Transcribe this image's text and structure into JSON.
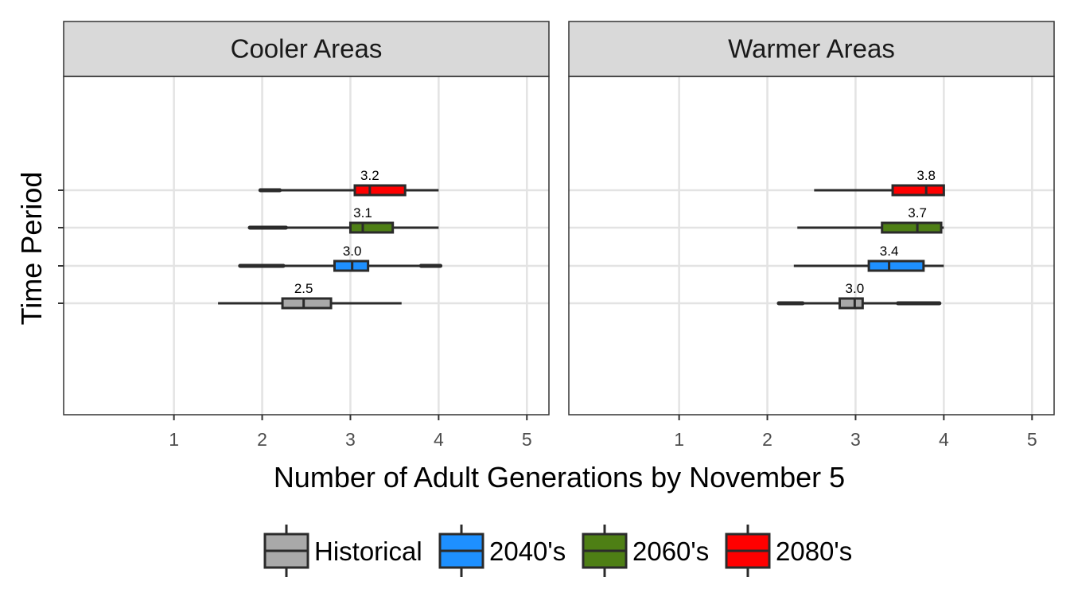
{
  "chart_data": {
    "type": "boxplot",
    "xlabel": "Number of Adult Generations by November 5",
    "ylabel": "Time Period",
    "xlim": [
      -0.25,
      5.25
    ],
    "xticks": [
      1,
      2,
      3,
      4,
      5
    ],
    "grid": true,
    "legend_position": "bottom",
    "series": [
      {
        "name": "Historical",
        "color": "#A9A9A9"
      },
      {
        "name": "2040's",
        "color": "#1E90FF"
      },
      {
        "name": "2060's",
        "color": "#4E7F15"
      },
      {
        "name": "2080's",
        "color": "#FF0000"
      }
    ],
    "panels": [
      {
        "title": "Cooler Areas",
        "boxes": [
          {
            "series": "Historical",
            "whisker_low": 1.5,
            "q1": 2.23,
            "median": 2.47,
            "q3": 2.78,
            "whisker_high": 3.58,
            "median_label": "2.5",
            "outlier_ranges": []
          },
          {
            "series": "2040's",
            "whisker_low": 2.24,
            "q1": 2.82,
            "median": 3.02,
            "q3": 3.2,
            "whisker_high": 3.8,
            "median_label": "3.0",
            "outlier_ranges": [
              [
                1.75,
                2.24
              ],
              [
                3.8,
                4.02
              ]
            ]
          },
          {
            "series": "2060's",
            "whisker_low": 2.27,
            "q1": 3.0,
            "median": 3.14,
            "q3": 3.48,
            "whisker_high": 4.0,
            "median_label": "3.1",
            "outlier_ranges": [
              [
                1.86,
                2.27
              ]
            ]
          },
          {
            "series": "2080's",
            "whisker_low": 2.2,
            "q1": 3.05,
            "median": 3.22,
            "q3": 3.62,
            "whisker_high": 4.0,
            "median_label": "3.2",
            "outlier_ranges": [
              [
                1.98,
                2.2
              ]
            ]
          }
        ]
      },
      {
        "title": "Warmer Areas",
        "boxes": [
          {
            "series": "Historical",
            "whisker_low": 2.4,
            "q1": 2.82,
            "median": 2.99,
            "q3": 3.08,
            "whisker_high": 3.48,
            "median_label": "3.0",
            "outlier_ranges": [
              [
                2.13,
                2.4
              ],
              [
                3.48,
                3.95
              ]
            ]
          },
          {
            "series": "2040's",
            "whisker_low": 2.3,
            "q1": 3.15,
            "median": 3.38,
            "q3": 3.77,
            "whisker_high": 4.0,
            "median_label": "3.4",
            "outlier_ranges": []
          },
          {
            "series": "2060's",
            "whisker_low": 2.34,
            "q1": 3.3,
            "median": 3.7,
            "q3": 3.97,
            "whisker_high": 4.0,
            "median_label": "3.7",
            "outlier_ranges": []
          },
          {
            "series": "2080's",
            "whisker_low": 2.53,
            "q1": 3.42,
            "median": 3.8,
            "q3": 4.0,
            "whisker_high": 4.0,
            "median_label": "3.8",
            "outlier_ranges": []
          }
        ]
      }
    ]
  }
}
